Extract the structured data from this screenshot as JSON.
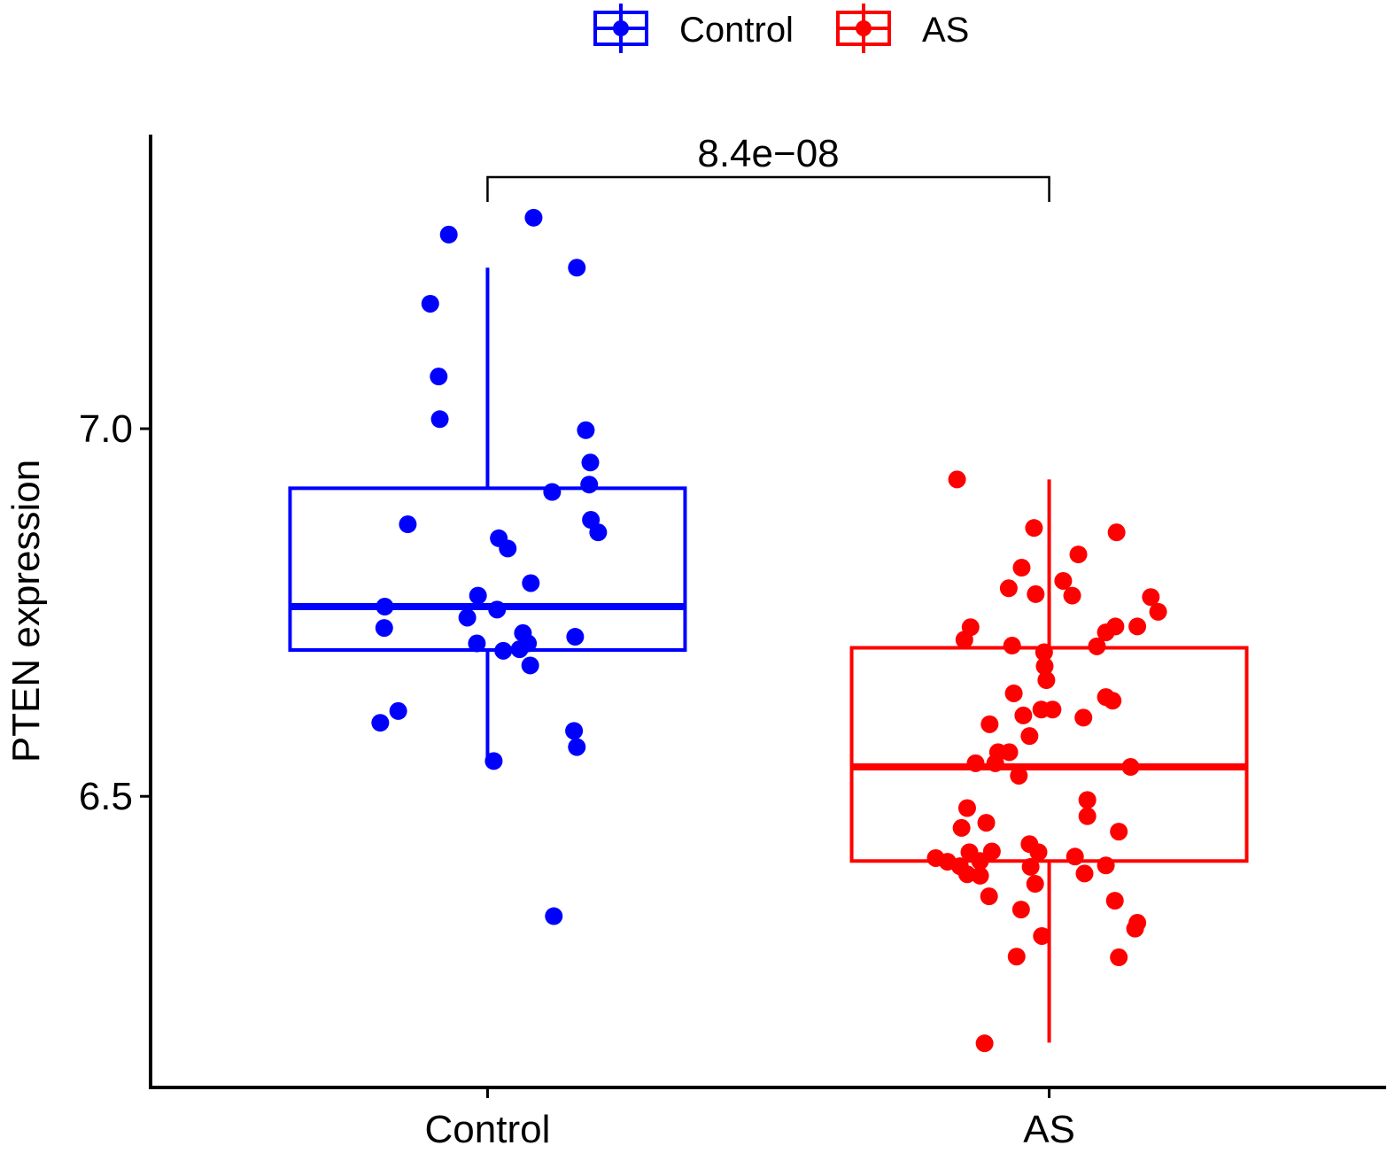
{
  "chart_data": {
    "type": "box",
    "title": "",
    "xlabel": "",
    "ylabel": "PTEN expression",
    "categories": [
      "Control",
      "AS"
    ],
    "xlim": [
      0.4,
      2.6
    ],
    "ylim": [
      6.104,
      7.4
    ],
    "yticks": [
      6.5,
      7.0
    ],
    "ytick_labels": [
      "6.5",
      "7.0"
    ],
    "grid": false,
    "legend": {
      "placement": "top",
      "entries": [
        "Control",
        "AS"
      ]
    },
    "annotation": {
      "text": "8.4e−08",
      "from": "Control",
      "to": "AS"
    },
    "series": [
      {
        "name": "Control",
        "color": "#0000ff",
        "box": {
          "whisker_low": 6.548,
          "q1": 6.699,
          "median": 6.758,
          "q3": 6.919,
          "whisker_high": 7.219
        },
        "points": [
          [
            1.082,
            7.287
          ],
          [
            0.931,
            7.264
          ],
          [
            1.159,
            7.219
          ],
          [
            0.898,
            7.17
          ],
          [
            0.913,
            7.071
          ],
          [
            0.915,
            7.013
          ],
          [
            1.175,
            6.998
          ],
          [
            1.183,
            6.954
          ],
          [
            1.181,
            6.924
          ],
          [
            1.115,
            6.914
          ],
          [
            0.858,
            6.87
          ],
          [
            1.184,
            6.876
          ],
          [
            1.197,
            6.859
          ],
          [
            1.02,
            6.851
          ],
          [
            1.036,
            6.837
          ],
          [
            1.077,
            6.79
          ],
          [
            0.983,
            6.773
          ],
          [
            0.817,
            6.758
          ],
          [
            1.017,
            6.754
          ],
          [
            0.964,
            6.743
          ],
          [
            0.816,
            6.729
          ],
          [
            1.063,
            6.722
          ],
          [
            1.156,
            6.717
          ],
          [
            0.981,
            6.708
          ],
          [
            1.072,
            6.708
          ],
          [
            1.028,
            6.698
          ],
          [
            1.057,
            6.7
          ],
          [
            1.076,
            6.678
          ],
          [
            0.841,
            6.616
          ],
          [
            0.809,
            6.6
          ],
          [
            1.154,
            6.589
          ],
          [
            1.159,
            6.567
          ],
          [
            1.011,
            6.548
          ],
          [
            1.118,
            6.337
          ]
        ]
      },
      {
        "name": "AS",
        "color": "#ff0000",
        "box": {
          "whisker_low": 6.165,
          "q1": 6.412,
          "median": 6.54,
          "q3": 6.702,
          "whisker_high": 6.931
        },
        "points": [
          [
            1.836,
            6.931
          ],
          [
            1.973,
            6.865
          ],
          [
            2.12,
            6.859
          ],
          [
            2.052,
            6.829
          ],
          [
            1.951,
            6.811
          ],
          [
            1.928,
            6.783
          ],
          [
            2.025,
            6.793
          ],
          [
            1.976,
            6.775
          ],
          [
            2.041,
            6.773
          ],
          [
            2.181,
            6.771
          ],
          [
            2.194,
            6.751
          ],
          [
            1.86,
            6.73
          ],
          [
            1.849,
            6.713
          ],
          [
            2.118,
            6.731
          ],
          [
            2.101,
            6.723
          ],
          [
            2.157,
            6.731
          ],
          [
            1.934,
            6.705
          ],
          [
            2.085,
            6.704
          ],
          [
            1.991,
            6.696
          ],
          [
            1.992,
            6.677
          ],
          [
            1.995,
            6.658
          ],
          [
            1.937,
            6.64
          ],
          [
            2.101,
            6.635
          ],
          [
            2.113,
            6.63
          ],
          [
            1.986,
            6.618
          ],
          [
            2.006,
            6.618
          ],
          [
            1.954,
            6.61
          ],
          [
            2.061,
            6.607
          ],
          [
            1.894,
            6.598
          ],
          [
            1.965,
            6.582
          ],
          [
            1.909,
            6.56
          ],
          [
            1.929,
            6.56
          ],
          [
            1.869,
            6.545
          ],
          [
            1.904,
            6.545
          ],
          [
            2.145,
            6.54
          ],
          [
            1.946,
            6.528
          ],
          [
            2.068,
            6.495
          ],
          [
            1.854,
            6.484
          ],
          [
            2.068,
            6.473
          ],
          [
            1.888,
            6.464
          ],
          [
            1.844,
            6.457
          ],
          [
            2.124,
            6.452
          ],
          [
            1.965,
            6.435
          ],
          [
            1.858,
            6.424
          ],
          [
            1.981,
            6.424
          ],
          [
            1.898,
            6.425
          ],
          [
            1.798,
            6.416
          ],
          [
            1.819,
            6.411
          ],
          [
            2.046,
            6.418
          ],
          [
            1.841,
            6.405
          ],
          [
            1.877,
            6.412
          ],
          [
            1.967,
            6.404
          ],
          [
            2.101,
            6.406
          ],
          [
            1.854,
            6.394
          ],
          [
            1.877,
            6.392
          ],
          [
            2.063,
            6.395
          ],
          [
            1.975,
            6.381
          ],
          [
            1.893,
            6.364
          ],
          [
            2.117,
            6.358
          ],
          [
            1.95,
            6.346
          ],
          [
            2.157,
            6.328
          ],
          [
            2.153,
            6.32
          ],
          [
            1.987,
            6.31
          ],
          [
            1.942,
            6.282
          ],
          [
            2.124,
            6.281
          ],
          [
            1.885,
            6.164
          ]
        ]
      }
    ]
  }
}
